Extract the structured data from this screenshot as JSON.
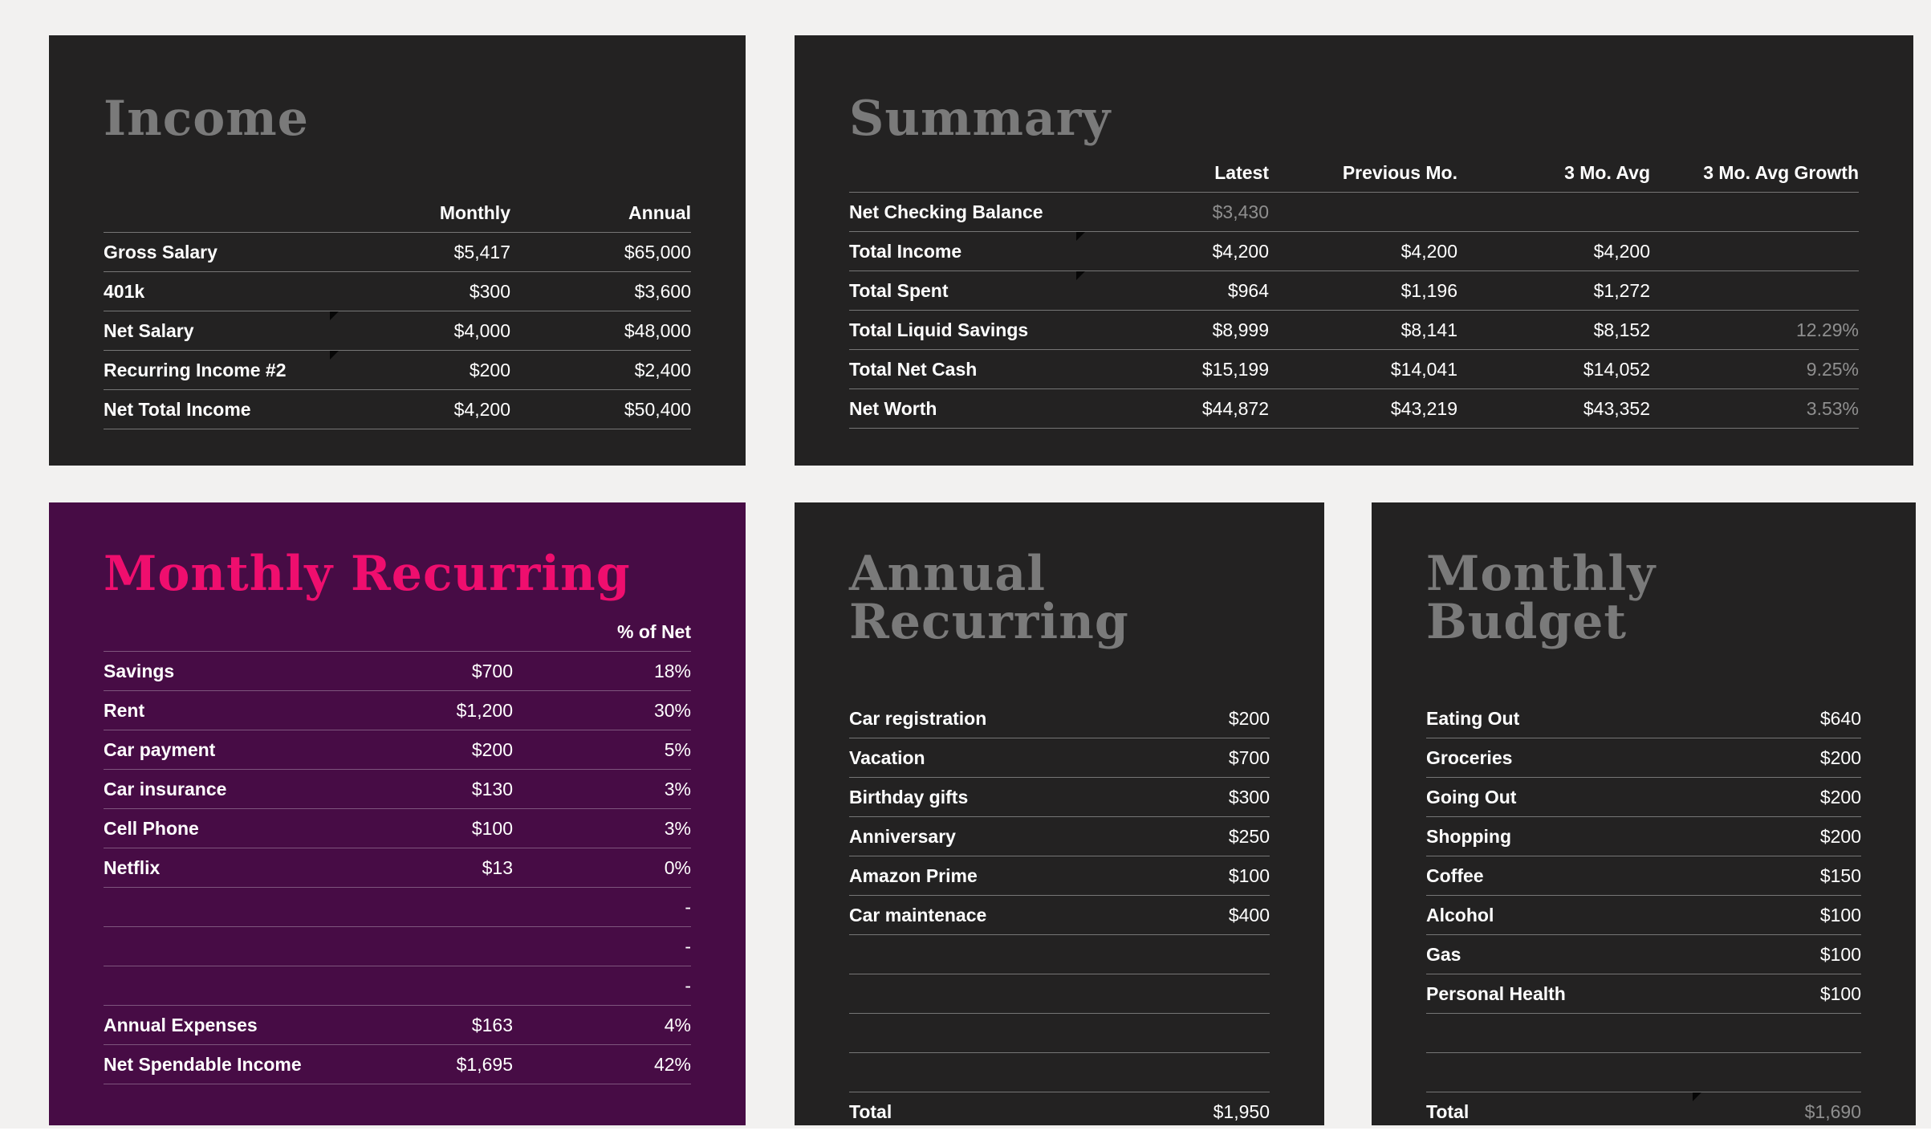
{
  "theme": {
    "page_bg": "#f2f1f0",
    "panel_dark_bg": "#232222",
    "panel_purple_bg": "#470c45",
    "title_gray": "#7a7a7a",
    "accent_pink": "#ef0e6e",
    "text": "#ffffff",
    "muted_text": "#8f8f8f"
  },
  "income": {
    "title": "Income",
    "col_monthly": "Monthly",
    "col_annual": "Annual",
    "rows": [
      {
        "label": "Gross Salary",
        "monthly": "$5,417",
        "annual": "$65,000"
      },
      {
        "label": "401k",
        "monthly": "$300",
        "annual": "$3,600"
      },
      {
        "label": "Net Salary",
        "monthly": "$4,000",
        "annual": "$48,000"
      },
      {
        "label": "Recurring Income #2",
        "monthly": "$200",
        "annual": "$2,400"
      },
      {
        "label": "Net Total Income",
        "monthly": "$4,200",
        "annual": "$50,400"
      }
    ]
  },
  "summary": {
    "title": "Summary",
    "columns": [
      "Latest",
      "Previous Mo.",
      "3 Mo. Avg",
      "3 Mo. Avg Growth"
    ],
    "rows": [
      {
        "label": "Net Checking Balance",
        "latest": "$3,430",
        "prev": "",
        "avg": "",
        "growth": ""
      },
      {
        "label": "Total Income",
        "latest": "$4,200",
        "prev": "$4,200",
        "avg": "$4,200",
        "growth": ""
      },
      {
        "label": "Total Spent",
        "latest": "$964",
        "prev": "$1,196",
        "avg": "$1,272",
        "growth": ""
      },
      {
        "label": "Total Liquid Savings",
        "latest": "$8,999",
        "prev": "$8,141",
        "avg": "$8,152",
        "growth": "12.29%"
      },
      {
        "label": "Total Net Cash",
        "latest": "$15,199",
        "prev": "$14,041",
        "avg": "$14,052",
        "growth": "9.25%"
      },
      {
        "label": "Net Worth",
        "latest": "$44,872",
        "prev": "$43,219",
        "avg": "$43,352",
        "growth": "3.53%"
      }
    ]
  },
  "monthly_recurring": {
    "title": "Monthly Recurring",
    "col_pct": "% of Net",
    "rows": [
      {
        "label": "Savings",
        "amount": "$700",
        "pct": "18%"
      },
      {
        "label": "Rent",
        "amount": "$1,200",
        "pct": "30%"
      },
      {
        "label": "Car payment",
        "amount": "$200",
        "pct": "5%"
      },
      {
        "label": "Car insurance",
        "amount": "$130",
        "pct": "3%"
      },
      {
        "label": "Cell Phone",
        "amount": "$100",
        "pct": "3%"
      },
      {
        "label": "Netflix",
        "amount": "$13",
        "pct": "0%"
      },
      {
        "label": "",
        "amount": "",
        "pct": "-"
      },
      {
        "label": "",
        "amount": "",
        "pct": "-"
      },
      {
        "label": "",
        "amount": "",
        "pct": "-"
      },
      {
        "label": "Annual Expenses",
        "amount": "$163",
        "pct": "4%"
      },
      {
        "label": "Net Spendable Income",
        "amount": "$1,695",
        "pct": "42%"
      }
    ]
  },
  "annual_recurring": {
    "title": "Annual Recurring",
    "rows": [
      {
        "label": "Car registration",
        "amount": "$200"
      },
      {
        "label": "Vacation",
        "amount": "$700"
      },
      {
        "label": "Birthday gifts",
        "amount": "$300"
      },
      {
        "label": "Anniversary",
        "amount": "$250"
      },
      {
        "label": "Amazon Prime",
        "amount": "$100"
      },
      {
        "label": "Car maintenace",
        "amount": "$400"
      }
    ],
    "total_label": "Total",
    "total_value": "$1,950"
  },
  "monthly_budget": {
    "title": "Monthly Budget",
    "rows": [
      {
        "label": "Eating Out",
        "amount": "$640"
      },
      {
        "label": "Groceries",
        "amount": "$200"
      },
      {
        "label": "Going Out",
        "amount": "$200"
      },
      {
        "label": "Shopping",
        "amount": "$200"
      },
      {
        "label": "Coffee",
        "amount": "$150"
      },
      {
        "label": "Alcohol",
        "amount": "$100"
      },
      {
        "label": "Gas",
        "amount": "$100"
      },
      {
        "label": "Personal Health",
        "amount": "$100"
      }
    ],
    "total_label": "Total",
    "total_value": "$1,690"
  }
}
